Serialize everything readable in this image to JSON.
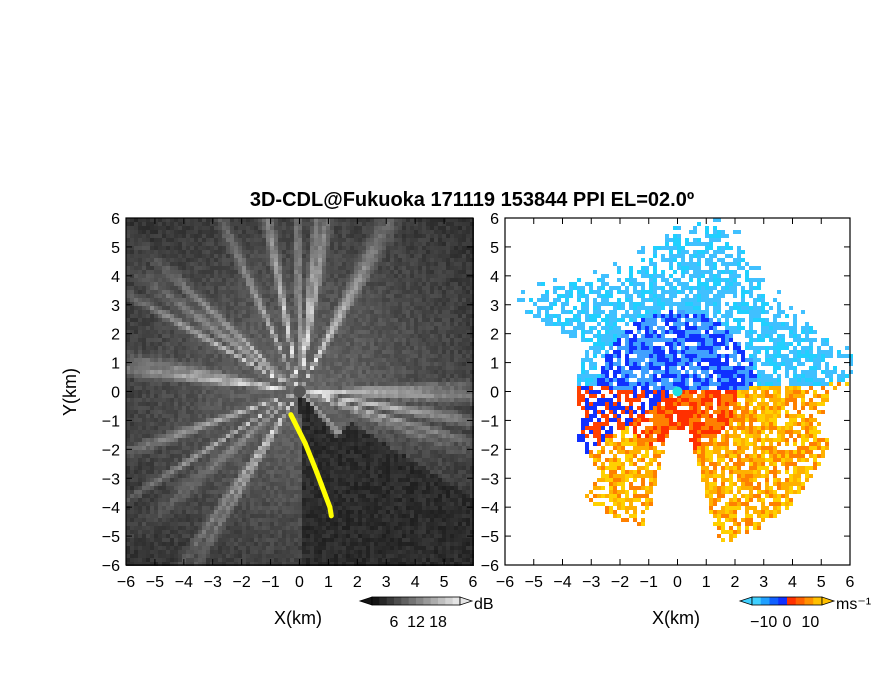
{
  "chart_data": [
    {
      "type": "heatmap",
      "panel": "reflectivity",
      "title": "3D-CDL@Fukuoka 171119 153844 PPI EL=02.0º",
      "xlabel": "X(km)",
      "ylabel": "Y(km)",
      "xlim": [
        -6,
        6
      ],
      "ylim": [
        -6,
        6
      ],
      "xticks": [
        "-6",
        "-5",
        "-4",
        "-3",
        "-2",
        "-1",
        "0",
        "1",
        "2",
        "3",
        "4",
        "5",
        "6"
      ],
      "yticks": [
        "6",
        "5",
        "4",
        "3",
        "2",
        "1",
        "0",
        "-1",
        "-2",
        "-3",
        "-4",
        "-5",
        "-6"
      ],
      "colorbar": {
        "unit": "dB",
        "ticks": [
          "6",
          "12",
          "18"
        ],
        "range": [
          0,
          24
        ]
      },
      "colors": {
        "low": "#1a1a1a",
        "high": "#e8e8e8",
        "highlight": "#ffff00"
      }
    },
    {
      "type": "heatmap",
      "panel": "doppler-velocity",
      "xlabel": "X(km)",
      "xlim": [
        -6,
        6
      ],
      "ylim": [
        -6,
        6
      ],
      "xticks": [
        "-6",
        "-5",
        "-4",
        "-3",
        "-2",
        "-1",
        "0",
        "1",
        "2",
        "3",
        "4",
        "5",
        "6"
      ],
      "yticks": [
        "6",
        "5",
        "4",
        "3",
        "2",
        "1",
        "0",
        "-1",
        "-2",
        "-3",
        "-4",
        "-5",
        "-6"
      ],
      "colorbar": {
        "unit": "ms⁻¹",
        "ticks": [
          "−10",
          "0",
          "10"
        ],
        "range": [
          -15,
          15
        ]
      },
      "colors": {
        "toward": "#00c8ff",
        "toward_strong": "#1030ff",
        "away": "#ff3000",
        "away_strong": "#ffd000"
      }
    }
  ]
}
